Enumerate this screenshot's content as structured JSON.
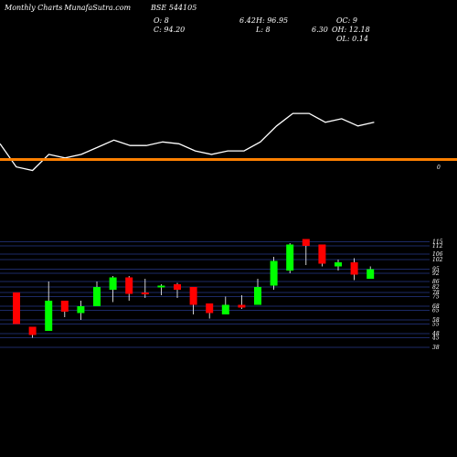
{
  "header": {
    "left_title": "Monthly Charts",
    "source": "- MunafaSutra.com",
    "symbol": "BSE 544105",
    "o_label": "O: 8",
    "o2": "6.42",
    "h_label": "H: 96.95",
    "oc_label": "OC: 9",
    "c_label": "C: 94.20",
    "l_label": "L: 8",
    "oc2": "6.30",
    "oh_label": "OH: 12.18",
    "ol_label": "OL: 0.14"
  },
  "divider_mark": "0",
  "colors": {
    "up": "#00ff00",
    "down": "#ff0000",
    "grid": "#1c2a66",
    "divider": "#ff8000",
    "line": "#ffffff",
    "background": "#000000"
  },
  "chart_data": {
    "type": "candlestick",
    "y_ticks": [
      115,
      112,
      106,
      102,
      95,
      92,
      86,
      82,
      78,
      75,
      68,
      65,
      58,
      55,
      48,
      45,
      38
    ],
    "candles": [
      {
        "o": 78,
        "h": 78,
        "l": 55,
        "c": 55
      },
      {
        "o": 53,
        "h": 53,
        "l": 45,
        "c": 47
      },
      {
        "o": 50,
        "h": 86,
        "l": 50,
        "c": 72
      },
      {
        "o": 72,
        "h": 72,
        "l": 60,
        "c": 64
      },
      {
        "o": 63,
        "h": 72,
        "l": 58,
        "c": 68
      },
      {
        "o": 68,
        "h": 86,
        "l": 68,
        "c": 82
      },
      {
        "o": 80,
        "h": 90,
        "l": 71,
        "c": 89
      },
      {
        "o": 89,
        "h": 90,
        "l": 72,
        "c": 77
      },
      {
        "o": 78,
        "h": 88,
        "l": 74,
        "c": 77
      },
      {
        "o": 82,
        "h": 84,
        "l": 76,
        "c": 83
      },
      {
        "o": 84,
        "h": 85,
        "l": 74,
        "c": 80
      },
      {
        "o": 82,
        "h": 82,
        "l": 62,
        "c": 69
      },
      {
        "o": 70,
        "h": 70,
        "l": 59,
        "c": 63
      },
      {
        "o": 62,
        "h": 75,
        "l": 62,
        "c": 69
      },
      {
        "o": 69,
        "h": 76,
        "l": 66,
        "c": 67
      },
      {
        "o": 69,
        "h": 88,
        "l": 69,
        "c": 82
      },
      {
        "o": 83,
        "h": 104,
        "l": 80,
        "c": 101
      },
      {
        "o": 94,
        "h": 114,
        "l": 92,
        "c": 113
      },
      {
        "o": 117,
        "h": 117,
        "l": 98,
        "c": 112
      },
      {
        "o": 113,
        "h": 113,
        "l": 97,
        "c": 99
      },
      {
        "o": 97,
        "h": 102,
        "l": 94,
        "c": 100
      },
      {
        "o": 100,
        "h": 103,
        "l": 87,
        "c": 91
      },
      {
        "o": 88,
        "h": 97,
        "l": 88,
        "c": 95
      }
    ],
    "line": [
      55,
      68,
      70,
      61,
      63,
      61,
      57,
      53,
      56,
      56,
      54,
      55,
      59,
      61,
      59,
      59,
      54,
      45,
      38,
      38,
      43,
      41,
      45,
      43
    ]
  }
}
